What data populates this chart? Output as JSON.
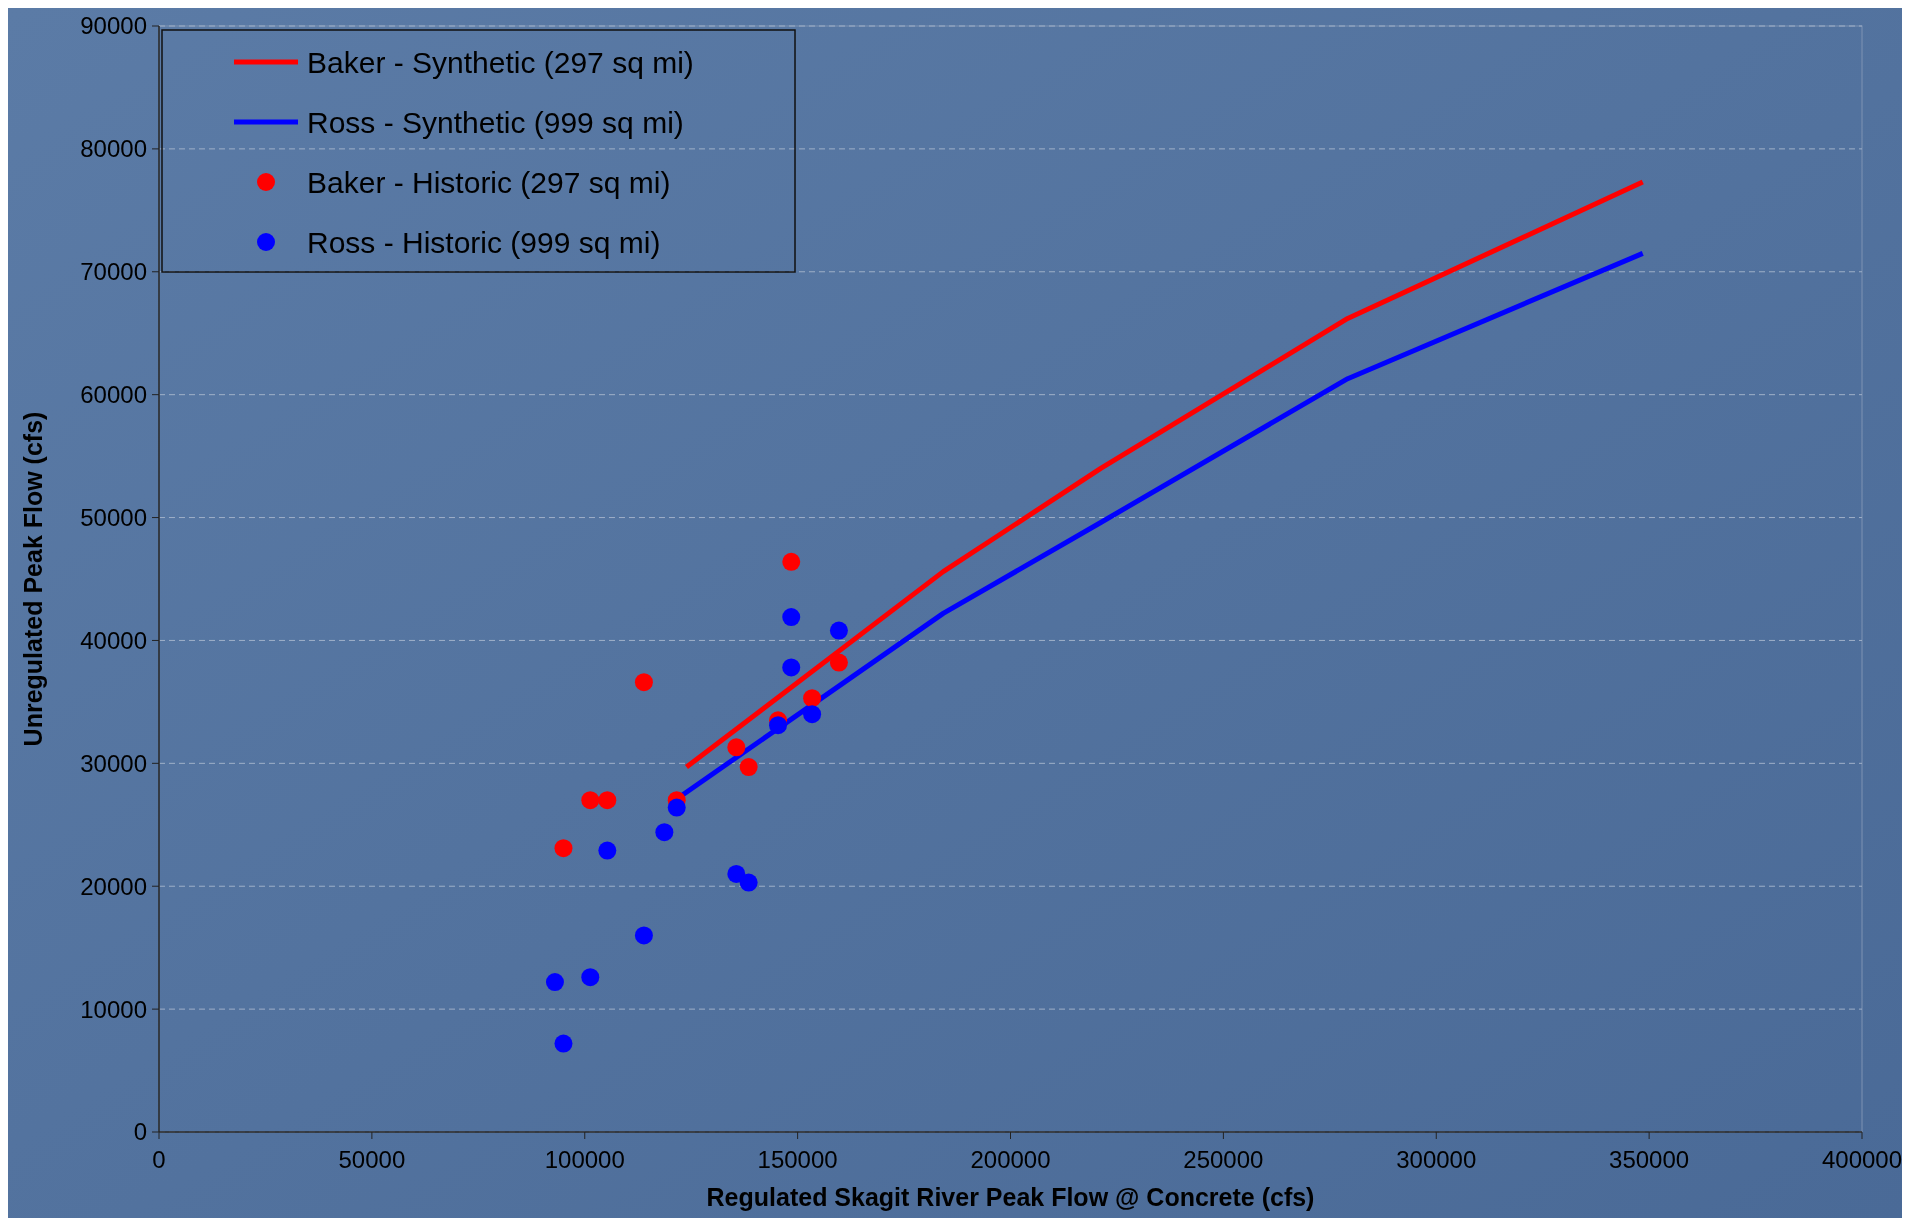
{
  "chart_data": {
    "type": "scatter",
    "xlabel": "Regulated Skagit River Peak Flow @ Concrete (cfs)",
    "ylabel": "Unregulated Peak Flow (cfs)",
    "xlim": [
      0,
      400000
    ],
    "xticks": [
      0,
      50000,
      100000,
      150000,
      200000,
      250000,
      300000,
      350000,
      400000
    ],
    "ylim": [
      0,
      90000
    ],
    "yticks": [
      0,
      10000,
      20000,
      30000,
      40000,
      50000,
      60000,
      70000,
      80000,
      90000
    ],
    "grid": "y",
    "legend": "top left",
    "series": [
      {
        "name": "Baker - Synthetic (297 sq mi)",
        "type": "line",
        "color": "#ff0000",
        "x": [
          123900,
          184200,
          221200,
          279200,
          348500
        ],
        "values": [
          29700,
          45600,
          54000,
          66200,
          77300
        ]
      },
      {
        "name": "Ross - Synthetic (999 sq mi)",
        "type": "line",
        "color": "#0000ff",
        "x": [
          121600,
          184200,
          221200,
          279200,
          348500
        ],
        "values": [
          27100,
          42200,
          49600,
          61300,
          71500
        ]
      },
      {
        "name": "Baker - Historic (297 sq mi)",
        "marker": "circle",
        "color": "#ff0000",
        "x": [
          95000,
          101300,
          105300,
          113900,
          121600,
          135600,
          138500,
          145400,
          148500,
          153400,
          159700
        ],
        "values": [
          23100,
          27000,
          27000,
          36600,
          27000,
          31300,
          29700,
          33500,
          46400,
          35300,
          38200
        ]
      },
      {
        "name": "Ross - Historic (999 sq mi)",
        "marker": "circle",
        "color": "#0000ff",
        "x": [
          93000,
          95000,
          101300,
          105300,
          113900,
          118700,
          121600,
          135600,
          138500,
          145400,
          148500,
          148500,
          153400,
          159700
        ],
        "values": [
          12200,
          7200,
          12600,
          22900,
          16000,
          24400,
          26400,
          21000,
          20300,
          33100,
          41900,
          37800,
          34000,
          40800
        ]
      }
    ]
  }
}
